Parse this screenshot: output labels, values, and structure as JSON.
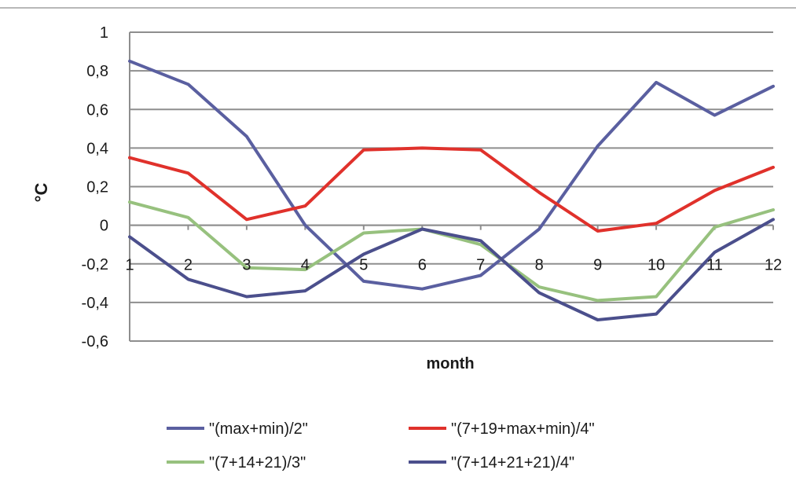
{
  "chart_data": {
    "type": "line",
    "title": "",
    "xlabel": "month",
    "ylabel": "°C",
    "x": [
      1,
      2,
      3,
      4,
      5,
      6,
      7,
      8,
      9,
      10,
      11,
      12
    ],
    "x_tick_labels": [
      "1",
      "2",
      "3",
      "4",
      "5",
      "6",
      "7",
      "8",
      "9",
      "10",
      "11",
      "12"
    ],
    "ylim": [
      -0.6,
      1
    ],
    "y_ticks": [
      -0.6,
      -0.4,
      -0.2,
      0,
      0.2,
      0.4,
      0.6,
      0.8,
      1
    ],
    "y_tick_labels": [
      "-0,6",
      "-0,4",
      "-0,2",
      "0",
      "0,2",
      "0,4",
      "0,6",
      "0,8",
      "1"
    ],
    "grid": true,
    "legend_position": "bottom",
    "series": [
      {
        "name": "\"(max+min)/2\"",
        "color": "#5a5fa0",
        "values": [
          0.85,
          0.73,
          0.46,
          0.0,
          -0.29,
          -0.33,
          -0.26,
          -0.02,
          0.41,
          0.74,
          0.57,
          0.72
        ]
      },
      {
        "name": "\"(7+19+max+min)/4\"",
        "color": "#e0312b",
        "values": [
          0.35,
          0.27,
          0.03,
          0.1,
          0.39,
          0.4,
          0.39,
          0.17,
          -0.03,
          0.01,
          0.18,
          0.3
        ]
      },
      {
        "name": "\"(7+14+21)/3\"",
        "color": "#97c17e",
        "values": [
          0.12,
          0.04,
          -0.22,
          -0.23,
          -0.04,
          -0.02,
          -0.1,
          -0.32,
          -0.39,
          -0.37,
          -0.01,
          0.08
        ]
      },
      {
        "name": "\"(7+14+21+21)/4\"",
        "color": "#4b4f8c",
        "values": [
          -0.06,
          -0.28,
          -0.37,
          -0.34,
          -0.15,
          -0.02,
          -0.08,
          -0.35,
          -0.49,
          -0.46,
          -0.14,
          0.03
        ]
      }
    ]
  }
}
